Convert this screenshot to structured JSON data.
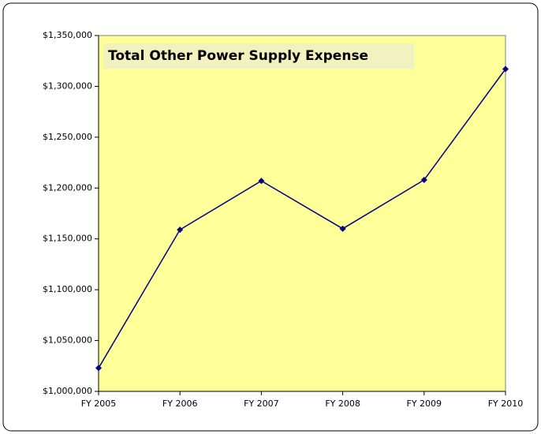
{
  "chart_data": {
    "type": "line",
    "title": "Total Other Power Supply Expense",
    "categories": [
      "FY 2005",
      "FY 2006",
      "FY 2007",
      "FY 2008",
      "FY 2009",
      "FY 2010"
    ],
    "series": [
      {
        "name": "Total Other Power Supply Expense",
        "color": "#000080",
        "values": [
          1023000,
          1159000,
          1207000,
          1160000,
          1208000,
          1317000
        ]
      }
    ],
    "ylim": [
      1000000,
      1350000
    ],
    "yticks": [
      {
        "value": 1000000,
        "label": "$1,000,000"
      },
      {
        "value": 1050000,
        "label": "$1,050,000"
      },
      {
        "value": 1100000,
        "label": "$1,100,000"
      },
      {
        "value": 1150000,
        "label": "$1,150,000"
      },
      {
        "value": 1200000,
        "label": "$1,200,000"
      },
      {
        "value": 1250000,
        "label": "$1,250,000"
      },
      {
        "value": 1300000,
        "label": "$1,300,000"
      },
      {
        "value": 1350000,
        "label": "$1,350,000"
      }
    ],
    "grid": false,
    "plot_background": "#ffff99"
  }
}
